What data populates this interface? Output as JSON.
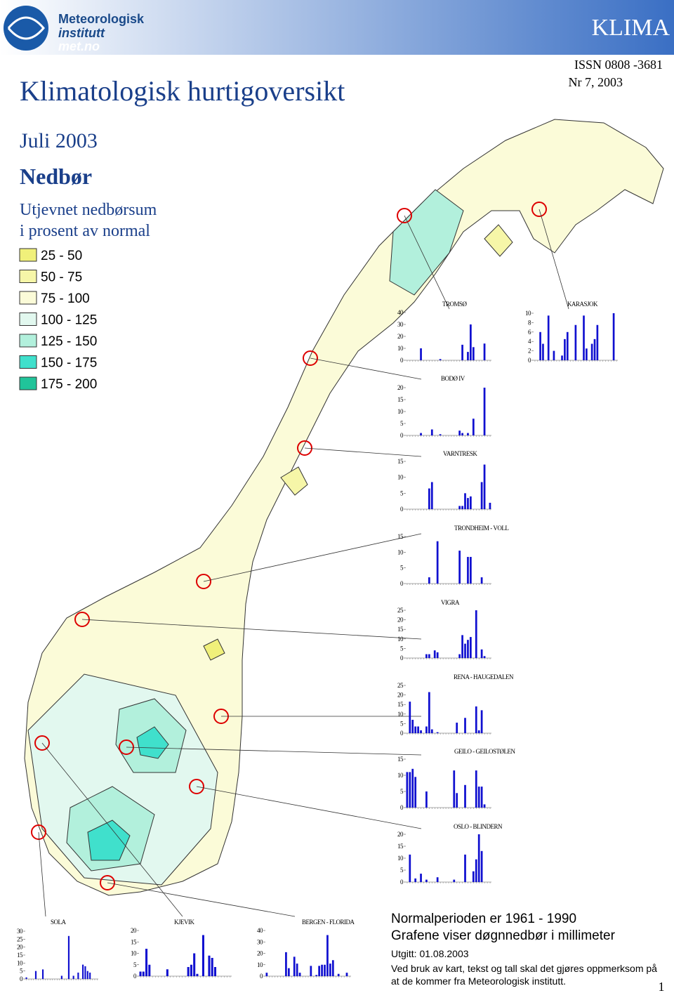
{
  "header": {
    "logo": [
      "Meteorologisk",
      "institutt",
      "met.no"
    ],
    "series_name": "KLIMA",
    "issn": "ISSN 0808 -3681",
    "issue": "Nr 7, 2003",
    "title": "Klimatologisk hurtigoversikt",
    "period": "Juli 2003",
    "element": "Nedbør",
    "subtitle": [
      "Utjevnet nedbørsum",
      "i prosent av normal"
    ]
  },
  "legend": {
    "items": [
      {
        "label": "25 - 50",
        "color": "#f0f07a"
      },
      {
        "label": "50 - 75",
        "color": "#f6f6a8"
      },
      {
        "label": "75 - 100",
        "color": "#fbfbd8"
      },
      {
        "label": "100 - 125",
        "color": "#e2f8ef"
      },
      {
        "label": "125 - 150",
        "color": "#b2f0dc"
      },
      {
        "label": "150 - 175",
        "color": "#40e0cc"
      },
      {
        "label": "175 - 200",
        "color": "#20c49a"
      }
    ]
  },
  "chart_data": [
    {
      "type": "bar",
      "title": "TROMSØ",
      "color": "#1010d0",
      "ylim": [
        0,
        40
      ],
      "yticks": [
        0,
        10,
        20,
        30,
        40
      ],
      "values": [
        0,
        0,
        0,
        0,
        0,
        10,
        0,
        0,
        0,
        0,
        0,
        0,
        1,
        0,
        0,
        0,
        0,
        0,
        0,
        0,
        13,
        0,
        7,
        30,
        11,
        0,
        0,
        0,
        14,
        0,
        0
      ]
    },
    {
      "type": "bar",
      "title": "KARASJOK",
      "color": "#1010d0",
      "ylim": [
        0,
        10
      ],
      "yticks": [
        0,
        2,
        4,
        6,
        8,
        10
      ],
      "values": [
        0,
        0,
        6,
        3.5,
        0,
        9.5,
        0,
        2,
        0,
        0,
        1,
        4.5,
        6,
        0,
        0,
        7.5,
        0,
        0,
        9.5,
        2.5,
        0,
        3.5,
        4.5,
        7.5,
        0,
        0,
        0,
        0,
        0,
        10,
        0
      ]
    },
    {
      "type": "bar",
      "title": "BODØ IV",
      "color": "#1010d0",
      "ylim": [
        0,
        20
      ],
      "yticks": [
        0,
        5,
        10,
        15,
        20
      ],
      "values": [
        0,
        0,
        0,
        0,
        0,
        1,
        0,
        0,
        0,
        2.5,
        0,
        0,
        0.5,
        0,
        0,
        0,
        0,
        0,
        0,
        2,
        1,
        0,
        1,
        0,
        7,
        0,
        0,
        0,
        20,
        0,
        0
      ]
    },
    {
      "type": "bar",
      "title": "VARNTRESK",
      "color": "#1010d0",
      "ylim": [
        0,
        15
      ],
      "yticks": [
        0,
        5,
        10,
        15
      ],
      "values": [
        0,
        0,
        0,
        0,
        0,
        0,
        0,
        0,
        6.5,
        8.5,
        0,
        0,
        0,
        0,
        0,
        0,
        0,
        0,
        0,
        1,
        1,
        5,
        3.5,
        4,
        0,
        0,
        0,
        8.5,
        14,
        0,
        2
      ]
    },
    {
      "type": "bar",
      "title": "TRONDHEIM - VOLL",
      "color": "#1010d0",
      "ylim": [
        0,
        15
      ],
      "yticks": [
        0,
        5,
        10,
        15
      ],
      "values": [
        0,
        0,
        0,
        0,
        0,
        0,
        0,
        0,
        2,
        0,
        0,
        13.5,
        0,
        0,
        0,
        0,
        0,
        0,
        0,
        10.5,
        0,
        0,
        8.5,
        8.5,
        0,
        0,
        0,
        2,
        0,
        0,
        0
      ]
    },
    {
      "type": "bar",
      "title": "VIGRA",
      "color": "#1010d0",
      "ylim": [
        0,
        25
      ],
      "yticks": [
        0,
        5,
        10,
        15,
        20,
        25
      ],
      "values": [
        0,
        0,
        0,
        0,
        0,
        0,
        0,
        2,
        2,
        0,
        4,
        3,
        0,
        0,
        0,
        0,
        0,
        0,
        0,
        2,
        12,
        7.5,
        9.5,
        11,
        0,
        25,
        0,
        4.5,
        1,
        0,
        0
      ]
    },
    {
      "type": "bar",
      "title": "RENA - HAUGEDALEN",
      "color": "#1010d0",
      "ylim": [
        0,
        25
      ],
      "yticks": [
        0,
        5,
        10,
        15,
        20,
        25
      ],
      "values": [
        0,
        16.5,
        7,
        3.5,
        3.5,
        1.5,
        0,
        3.5,
        21.5,
        2,
        0,
        0.5,
        0,
        0,
        0,
        0,
        0,
        0,
        5.5,
        0,
        0,
        8,
        0,
        0,
        0,
        14,
        1.5,
        12,
        0,
        0,
        0
      ]
    },
    {
      "type": "bar",
      "title": "GEILO - GEILOSTØLEN",
      "color": "#1010d0",
      "ylim": [
        0,
        15
      ],
      "yticks": [
        0,
        5,
        10,
        15
      ],
      "values": [
        11,
        11,
        12,
        9.5,
        0,
        0,
        0,
        5,
        0,
        0,
        0,
        0,
        0,
        0,
        0,
        0,
        0,
        11.5,
        4.5,
        0,
        0,
        7,
        0,
        0,
        0,
        11.5,
        6.5,
        6.5,
        1,
        0,
        0
      ]
    },
    {
      "type": "bar",
      "title": "OSLO - BLINDERN",
      "color": "#1010d0",
      "ylim": [
        0,
        20
      ],
      "yticks": [
        0,
        5,
        10,
        15,
        20
      ],
      "values": [
        0,
        11.5,
        0,
        1.5,
        0,
        3.5,
        0,
        1,
        0,
        0,
        0,
        2,
        0,
        0,
        0,
        0,
        0,
        1,
        0,
        0,
        0,
        11.5,
        0,
        0,
        4.5,
        9.5,
        20,
        13,
        0,
        0,
        0
      ]
    },
    {
      "type": "bar",
      "title": "SOLA",
      "color": "#1010d0",
      "ylim": [
        0,
        30
      ],
      "yticks": [
        0,
        5,
        10,
        15,
        20,
        25,
        30
      ],
      "values": [
        1,
        0,
        0,
        0,
        5,
        0,
        0,
        6,
        0,
        0,
        0,
        0,
        0,
        0,
        0,
        2,
        0,
        0,
        27,
        0,
        2,
        0,
        4,
        0,
        9,
        8,
        5,
        4,
        0,
        0,
        0
      ]
    },
    {
      "type": "bar",
      "title": "KJEVIK",
      "color": "#1010d0",
      "ylim": [
        0,
        20
      ],
      "yticks": [
        0,
        5,
        10,
        15,
        20
      ],
      "values": [
        2,
        2,
        12,
        5,
        0,
        0,
        0,
        0,
        0,
        3,
        0,
        0,
        0,
        0,
        0,
        0,
        4,
        5,
        10,
        1,
        0,
        18,
        0,
        9,
        8,
        4,
        0,
        0,
        0,
        0,
        0
      ]
    },
    {
      "type": "bar",
      "title": "BERGEN - FLORIDA",
      "color": "#1010d0",
      "ylim": [
        0,
        40
      ],
      "yticks": [
        0,
        10,
        20,
        30,
        40
      ],
      "values": [
        3,
        0,
        0,
        0,
        0,
        0,
        0,
        21,
        7,
        0,
        17,
        11,
        3,
        0,
        0,
        0,
        9,
        0,
        1,
        9,
        10,
        10,
        36,
        11,
        14,
        0,
        2,
        0,
        0,
        3,
        0
      ]
    }
  ],
  "footer": {
    "lines": [
      "Normalperioden er 1961 - 1990",
      "Grafene viser døgnnedbør i millimeter",
      "Utgitt: 01.08.2003",
      "Ved bruk av kart, tekst og tall skal det gjøres oppmerksom på",
      "at de kommer fra Meteorologisk institutt."
    ],
    "page": "1"
  }
}
